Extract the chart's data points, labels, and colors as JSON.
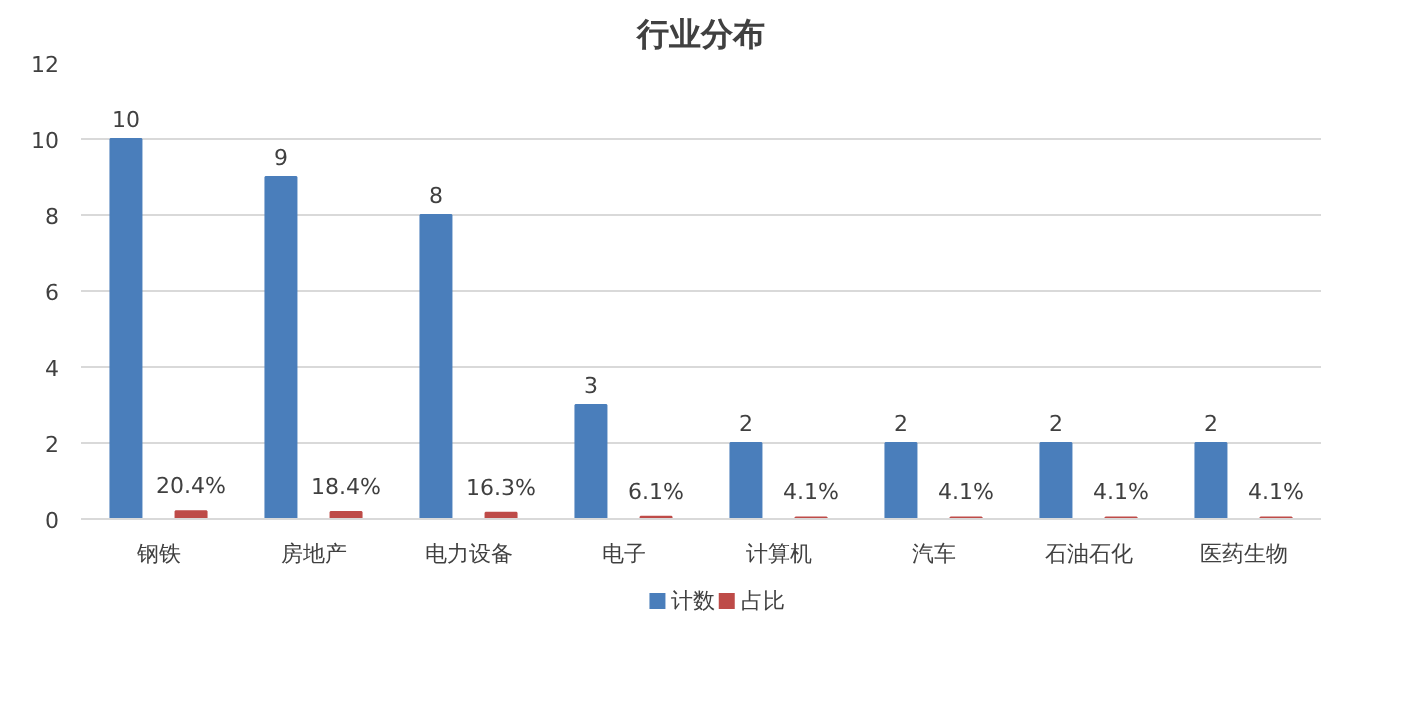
{
  "chart_data": {
    "type": "bar",
    "title": "行业分布",
    "categories": [
      "钢铁",
      "房地产",
      "电力设备",
      "电子",
      "计算机",
      "汽车",
      "石油石化",
      "医药生物"
    ],
    "series": [
      {
        "name": "计数",
        "color": "#4a7ebb",
        "values": [
          10,
          9,
          8,
          3,
          2,
          2,
          2,
          2
        ],
        "value_labels": [
          "10",
          "9",
          "8",
          "3",
          "2",
          "2",
          "2",
          "2"
        ]
      },
      {
        "name": "占比",
        "color": "#be4b48",
        "values": [
          0.204,
          0.184,
          0.163,
          0.061,
          0.041,
          0.041,
          0.041,
          0.041
        ],
        "value_labels": [
          "20.4%",
          "18.4%",
          "16.3%",
          "6.1%",
          "4.1%",
          "4.1%",
          "4.1%",
          "4.1%"
        ]
      }
    ],
    "ylim": [
      0,
      12
    ],
    "yticks": [
      0,
      2,
      4,
      6,
      8,
      10,
      12
    ],
    "grid": "y",
    "legend": "bottom"
  }
}
